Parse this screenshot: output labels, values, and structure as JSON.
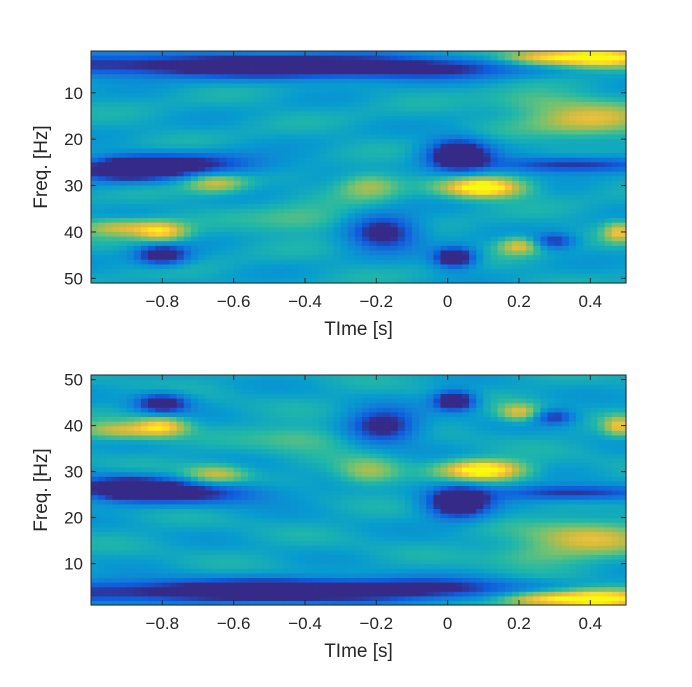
{
  "chart_data": [
    {
      "type": "heatmap",
      "title": "",
      "xlabel": "TIme [s]",
      "ylabel": "Freq. [Hz]",
      "xlim": [
        -1.0,
        0.5
      ],
      "ylim": [
        1,
        51
      ],
      "y_direction": "reverse",
      "xticks": [
        -0.8,
        -0.6,
        -0.4,
        -0.2,
        0,
        0.2,
        0.4
      ],
      "xtick_labels": [
        "−0.8",
        "−0.6",
        "−0.4",
        "−0.2",
        "0",
        "0.2",
        "0.4"
      ],
      "yticks": [
        10,
        20,
        30,
        40,
        50
      ],
      "ytick_labels": [
        "10",
        "20",
        "30",
        "40",
        "50"
      ],
      "colormap": "parula",
      "grid": false,
      "colors": {
        "low": "#352a87",
        "mid": "#21b7a8",
        "high": "#f9fb0e"
      }
    },
    {
      "type": "heatmap",
      "title": "",
      "xlabel": "TIme [s]",
      "ylabel": "Freq. [Hz]",
      "xlim": [
        -1.0,
        0.5
      ],
      "ylim": [
        1,
        51
      ],
      "y_direction": "normal",
      "xticks": [
        -0.8,
        -0.6,
        -0.4,
        -0.2,
        0,
        0.2,
        0.4
      ],
      "xtick_labels": [
        "−0.8",
        "−0.6",
        "−0.4",
        "−0.2",
        "0",
        "0.2",
        "0.4"
      ],
      "yticks": [
        10,
        20,
        30,
        40,
        50
      ],
      "ytick_labels": [
        "10",
        "20",
        "30",
        "40",
        "50"
      ],
      "colormap": "parula",
      "grid": false,
      "colors": {
        "low": "#352a87",
        "mid": "#21b7a8",
        "high": "#f9fb0e"
      }
    }
  ],
  "heatmap_features": [
    {
      "t": 0.42,
      "f": 2.5,
      "dt": 0.1,
      "df": 1.5,
      "v": 0.72
    },
    {
      "t": 0.25,
      "f": 2.5,
      "dt": 0.08,
      "df": 1.2,
      "v": 0.42
    },
    {
      "t": -0.6,
      "f": 4,
      "dt": 0.45,
      "df": 1.8,
      "v": -0.55
    },
    {
      "t": -0.2,
      "f": 5,
      "dt": 0.3,
      "df": 1.5,
      "v": -0.3
    },
    {
      "t": 0.4,
      "f": 16,
      "dt": 0.12,
      "df": 2.5,
      "v": 0.38
    },
    {
      "t": 0.25,
      "f": 12,
      "dt": 0.1,
      "df": 1.8,
      "v": 0.18
    },
    {
      "t": -0.9,
      "f": 26.5,
      "dt": 0.1,
      "df": 1.8,
      "v": -0.65
    },
    {
      "t": -0.7,
      "f": 25.5,
      "dt": 0.15,
      "df": 1.8,
      "v": -0.4
    },
    {
      "t": 0.03,
      "f": 23.5,
      "dt": 0.06,
      "df": 2.5,
      "v": -0.7
    },
    {
      "t": 0.35,
      "f": 25.5,
      "dt": 0.15,
      "df": 1.2,
      "v": -0.45
    },
    {
      "t": 0.1,
      "f": 30.5,
      "dt": 0.08,
      "df": 1.5,
      "v": 0.68
    },
    {
      "t": -0.22,
      "f": 30,
      "dt": 0.06,
      "df": 2.0,
      "v": 0.3
    },
    {
      "t": -0.65,
      "f": 29.5,
      "dt": 0.06,
      "df": 1.5,
      "v": 0.38
    },
    {
      "t": -0.92,
      "f": 39,
      "dt": 0.08,
      "df": 1.3,
      "v": 0.35
    },
    {
      "t": -0.8,
      "f": 40,
      "dt": 0.05,
      "df": 1.5,
      "v": 0.45
    },
    {
      "t": -0.8,
      "f": 45,
      "dt": 0.05,
      "df": 1.5,
      "v": -0.6
    },
    {
      "t": -0.18,
      "f": 40,
      "dt": 0.07,
      "df": 2.5,
      "v": -0.55
    },
    {
      "t": 0.02,
      "f": 45.5,
      "dt": 0.04,
      "df": 1.5,
      "v": -0.7
    },
    {
      "t": 0.2,
      "f": 43,
      "dt": 0.04,
      "df": 1.3,
      "v": 0.4
    },
    {
      "t": 0.48,
      "f": 40,
      "dt": 0.03,
      "df": 1.5,
      "v": 0.4
    },
    {
      "t": -0.4,
      "f": 37.5,
      "dt": 0.1,
      "df": 2.0,
      "v": 0.2
    },
    {
      "t": 0.3,
      "f": 42,
      "dt": 0.04,
      "df": 1.2,
      "v": -0.4
    }
  ]
}
